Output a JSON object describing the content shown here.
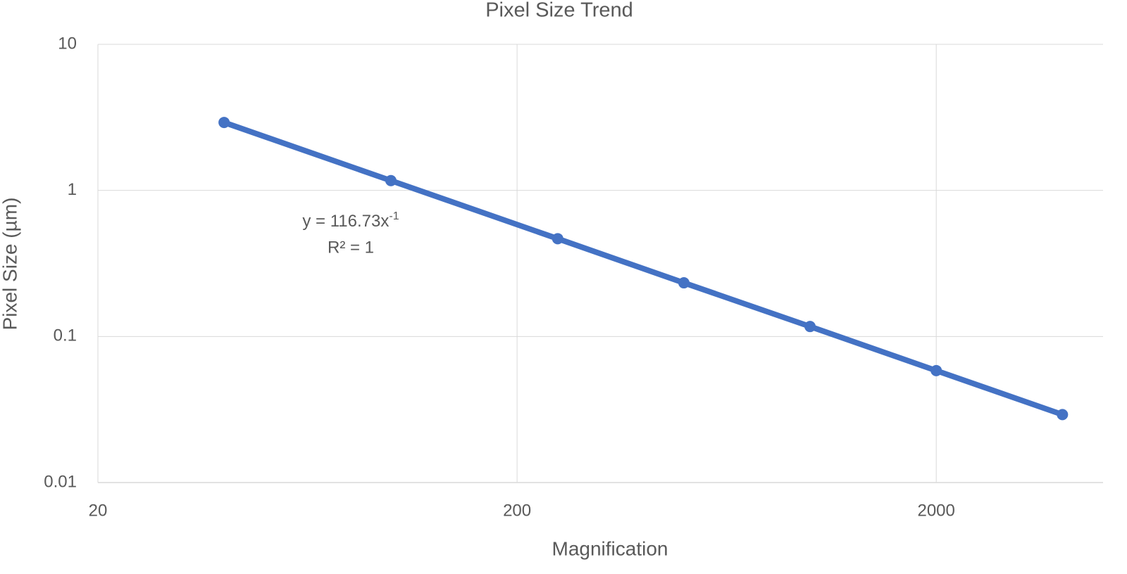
{
  "chart_data": {
    "type": "line",
    "title": "Pixel Size Trend",
    "x_label": "Magnification",
    "y_label": "Pixel Size (µm)",
    "x": [
      40,
      100,
      250,
      500,
      1000,
      2000,
      4000
    ],
    "series": [
      {
        "name": "Pixel Size",
        "color": "#4472c4",
        "values": [
          2.918,
          1.167,
          0.467,
          0.233,
          0.117,
          0.0584,
          0.0292
        ]
      }
    ],
    "xlim": [
      20,
      5000
    ],
    "xticks": [
      20,
      200,
      2000
    ],
    "ylim": [
      0.01,
      10
    ],
    "yticks": [
      0.01,
      0.1,
      1,
      10
    ],
    "x_log": true,
    "y_log": true,
    "grid": true,
    "legend": false,
    "annotation": {
      "equation": "y = 116.73x",
      "exponent": "-1",
      "r_squared": "R² = 1"
    }
  }
}
